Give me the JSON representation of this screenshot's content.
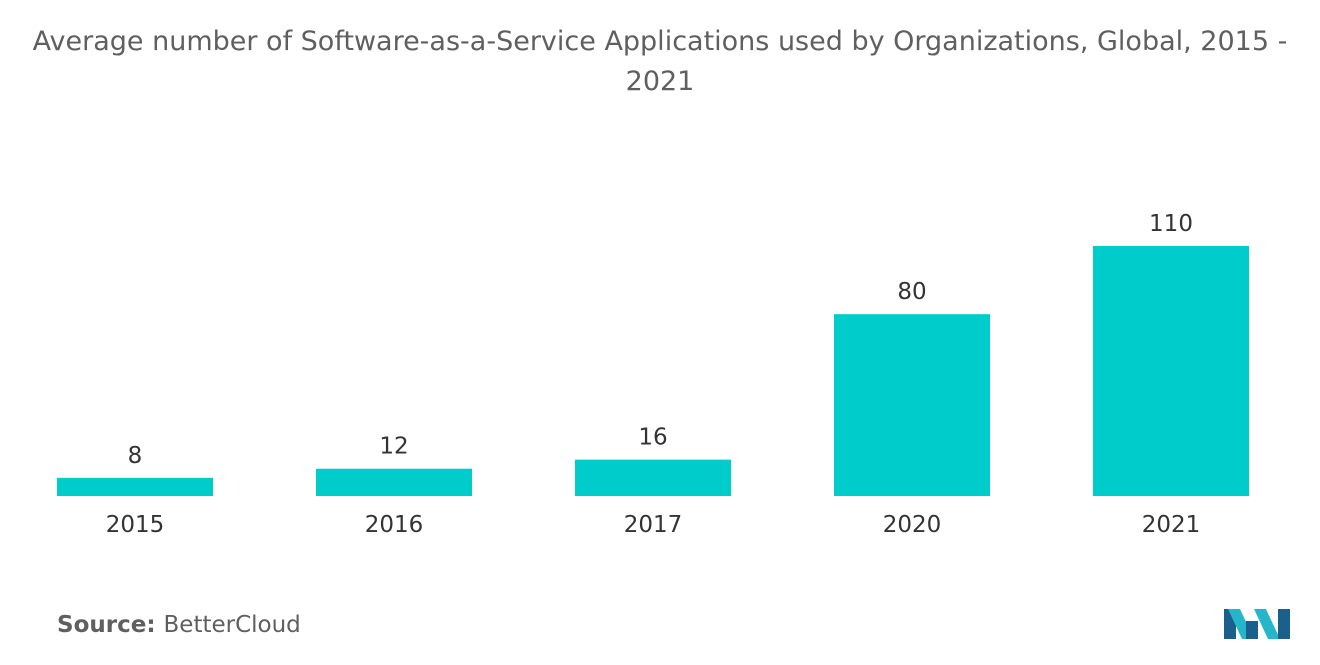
{
  "chart_data": {
    "type": "bar",
    "title": "Average number of Software-as-a-Service Applications used by Organizations, Global, 2015 - 2021",
    "categories": [
      "2015",
      "2016",
      "2017",
      "2020",
      "2021"
    ],
    "values": [
      8,
      12,
      16,
      80,
      110
    ],
    "xlabel": "",
    "ylabel": "",
    "ylim": [
      0,
      110
    ],
    "grid": false,
    "bar_color": "#00cccc"
  },
  "source": {
    "label": "Source:",
    "value": "BetterCloud"
  },
  "logo": {
    "icon": "mordor-intelligence-logo-icon",
    "colors": [
      "#1b5f8c",
      "#27b5c9"
    ]
  }
}
